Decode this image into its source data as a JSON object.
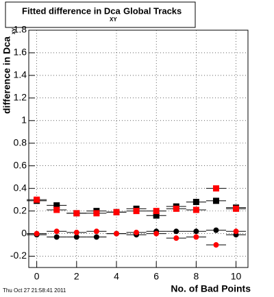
{
  "chart_data": {
    "type": "scatter",
    "title": "Fitted difference in Dca",
    "title_subscript": "XY",
    "title_suffix": "Global Tracks",
    "y_label": "difference in Dca",
    "y_label_subscript": "xy",
    "x_label": "No. of Bad Points",
    "timestamp": "Thu Oct 27 21:58:41 2011",
    "x": [
      0,
      1,
      2,
      3,
      4,
      5,
      6,
      7,
      8,
      9,
      10
    ],
    "xerr": 0.5,
    "series": [
      {
        "color": "#000000",
        "marker": "square",
        "values": [
          0.29,
          0.25,
          0.18,
          0.2,
          0.19,
          0.22,
          0.16,
          0.24,
          0.28,
          0.29,
          0.23
        ]
      },
      {
        "color": "#ff0000",
        "marker": "square",
        "values": [
          0.3,
          0.21,
          0.18,
          0.18,
          0.19,
          0.2,
          0.2,
          0.22,
          0.21,
          0.4,
          0.22
        ]
      },
      {
        "color": "#000000",
        "marker": "circle",
        "values": [
          -0.01,
          -0.03,
          -0.03,
          -0.03,
          0,
          -0.01,
          0.02,
          0.02,
          0.02,
          0.03,
          -0.01
        ]
      },
      {
        "color": "#ff0000",
        "marker": "circle",
        "values": [
          0,
          0.02,
          0.01,
          0.02,
          0,
          0.01,
          0,
          -0.04,
          -0.03,
          -0.1,
          0.02
        ]
      }
    ],
    "xlim": [
      -0.4,
      10.6
    ],
    "ylim": [
      -0.3,
      1.8
    ],
    "xticks": [
      0,
      2,
      4,
      6,
      8,
      10
    ],
    "yticks": [
      -0.2,
      0,
      0.2,
      0.4,
      0.6,
      0.8,
      1,
      1.2,
      1.4,
      1.6,
      1.8
    ],
    "grid": true
  }
}
